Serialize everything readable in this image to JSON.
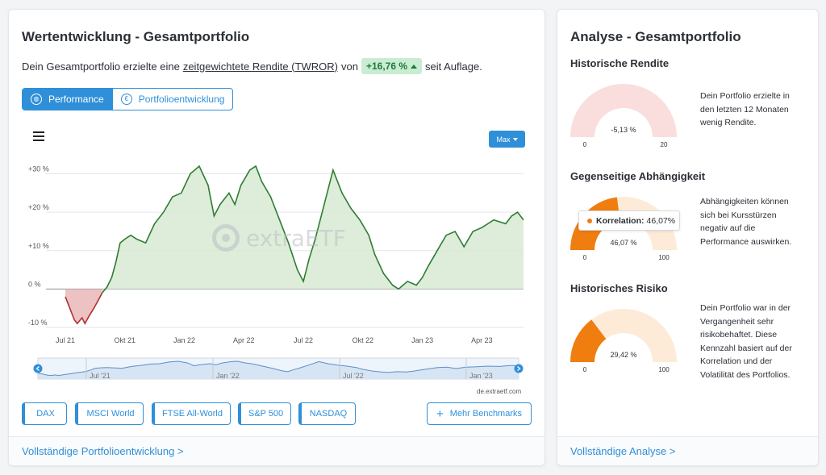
{
  "colors": {
    "accent": "#2f8fd8",
    "positive": "#2e7d32",
    "positive_fill": "#d7ead2",
    "negative": "#b03030",
    "negative_fill": "#e9b7b7",
    "gauge_orange": "#f07d10",
    "gauge_light": "#fdebd8",
    "gauge_red": "#f9dedd"
  },
  "left": {
    "title": "Wertentwicklung - Gesamtportfolio",
    "summary": {
      "before": "Dein Gesamtportfolio erzielte eine",
      "link": "zeitgewichtete Rendite (TWROR)",
      "mid": "von",
      "value": "+16,76 %",
      "after": "seit Auflage."
    },
    "toggle": [
      {
        "label": "Performance",
        "icon": "globe-icon",
        "active": true
      },
      {
        "label": "Portfolioentwicklung",
        "icon": "euro-icon",
        "active": false
      }
    ],
    "menu_icon": "hamburger-menu-icon",
    "range_button": "Max",
    "watermark": "extraETF",
    "credit": "de.extraetf.com",
    "benchmarks": [
      "DAX",
      "MSCI World",
      "FTSE All-World",
      "S&P 500",
      "NASDAQ"
    ],
    "more_benchmarks": "Mehr Benchmarks",
    "footer_link": "Vollständige Portfolioentwicklung >"
  },
  "chart_data": {
    "type": "area",
    "title": "",
    "x_ticks": [
      "Jul 21",
      "Okt 21",
      "Jan 22",
      "Apr 22",
      "Jul 22",
      "Okt 22",
      "Jan 23",
      "Apr 23"
    ],
    "y_ticks": [
      "+30 %",
      "+20 %",
      "+10 %",
      "0 %",
      "-10 %"
    ],
    "ylim": [
      -10,
      32
    ],
    "unit": "%",
    "grid": true,
    "series": [
      {
        "x": [
          0,
          0.05,
          0.1,
          0.15,
          0.2,
          0.28,
          0.33,
          0.4,
          0.48,
          0.55,
          0.62,
          0.7,
          0.78,
          0.85,
          0.92,
          1.0,
          1.1,
          1.2,
          1.35,
          1.5,
          1.65,
          1.8,
          1.95,
          2.1,
          2.25,
          2.4,
          2.5,
          2.6,
          2.75,
          2.85,
          2.95,
          3.1,
          3.2,
          3.3,
          3.45,
          3.6,
          3.75,
          3.9,
          4.0,
          4.1,
          4.2,
          4.35,
          4.5,
          4.65,
          4.8,
          4.95,
          5.1,
          5.2,
          5.35,
          5.5,
          5.6,
          5.75,
          5.9,
          6.0,
          6.1,
          6.25,
          6.4,
          6.55,
          6.7,
          6.85,
          7.0,
          7.2,
          7.4,
          7.5,
          7.6,
          7.7
        ],
        "y": [
          -2,
          -4,
          -6,
          -8,
          -9,
          -7.5,
          -9,
          -7,
          -5,
          -3,
          -1,
          0.5,
          3,
          7,
          12,
          13,
          14,
          13,
          12,
          17,
          20,
          24,
          25,
          30,
          32,
          27,
          19,
          22,
          25,
          22,
          27,
          31,
          32,
          28,
          24,
          18,
          12,
          5,
          2,
          8,
          13,
          22,
          31,
          25,
          21,
          18,
          14,
          9,
          4,
          1,
          0,
          2,
          1,
          3,
          6,
          10,
          14,
          15,
          11,
          15,
          16,
          18,
          17,
          19,
          20,
          18
        ]
      }
    ]
  },
  "navigator": {
    "labels": [
      "Jul '21",
      "Jan '22",
      "Jul '22",
      "Jan '23"
    ]
  },
  "right": {
    "title": "Analyse - Gesamtportfolio",
    "sections": [
      {
        "title": "Historische Rendite",
        "value_label": "-5,13 %",
        "value": -5.13,
        "min": "0",
        "max": "20",
        "description": "Dein Portfolio erzielte in den letzten 12 Monaten wenig Rendite.",
        "style": "red"
      },
      {
        "title": "Gegenseitige Abhängigkeit",
        "value_label": "46,07 %",
        "value": 46.07,
        "min": "0",
        "max": "100",
        "description": "Abhängigkeiten können sich bei Kursstürzen negativ auf die Performance auswirken.",
        "style": "orange",
        "tooltip_label": "Korrelation:",
        "tooltip_value": "46,07%"
      },
      {
        "title": "Historisches Risiko",
        "value_label": "29,42 %",
        "value": 29.42,
        "min": "0",
        "max": "100",
        "description": "Dein Portfolio war in der Vergangenheit sehr risikobehaftet. Diese Kennzahl basiert auf der Korrelation und der Volatilität des Portfolios.",
        "style": "orange"
      }
    ],
    "footer_link": "Vollständige Analyse >"
  }
}
